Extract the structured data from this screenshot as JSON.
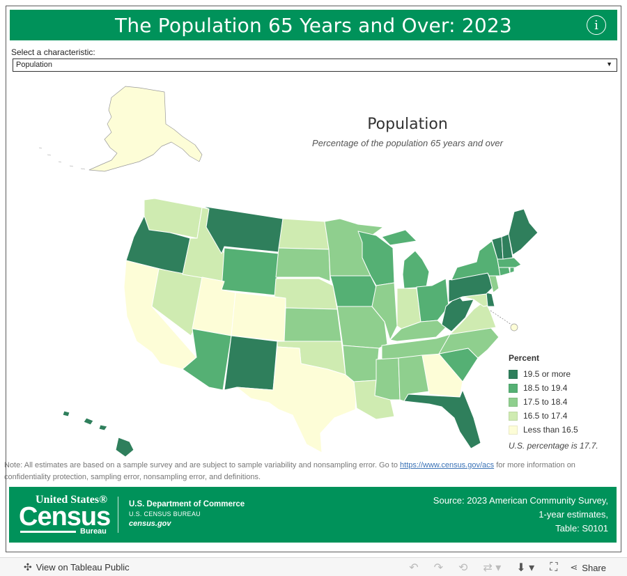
{
  "title": "The Population 65 Years and Over: 2023",
  "info_icon": "info-icon",
  "selector": {
    "label": "Select a characteristic:",
    "value": "Population"
  },
  "map": {
    "title": "Population",
    "subtitle": "Percentage of the population 65 years and over"
  },
  "legend": {
    "title": "Percent",
    "items": [
      {
        "label": "19.5 or more",
        "color": "#2f7f5c"
      },
      {
        "label": "18.5 to 19.4",
        "color": "#55b074"
      },
      {
        "label": "17.5 to 18.4",
        "color": "#8fcf8e"
      },
      {
        "label": "16.5 to 17.4",
        "color": "#cfebb1"
      },
      {
        "label": "Less than 16.5",
        "color": "#fdfdd7"
      }
    ],
    "us_percentage": "U.S. percentage is 17.7."
  },
  "state_classes": {
    "WA": 3,
    "OR": 0,
    "CA": 4,
    "NV": 3,
    "ID": 3,
    "MT": 0,
    "WY": 1,
    "UT": 4,
    "AZ": 1,
    "CO": 4,
    "NM": 0,
    "ND": 3,
    "SD": 2,
    "NE": 3,
    "KS": 2,
    "OK": 3,
    "TX": 4,
    "MN": 2,
    "IA": 1,
    "MO": 2,
    "AR": 2,
    "LA": 3,
    "WI": 1,
    "IL": 2,
    "MI": 1,
    "IN": 3,
    "OH": 1,
    "KY": 2,
    "TN": 2,
    "MS": 2,
    "AL": 2,
    "GA": 4,
    "FL": 0,
    "SC": 1,
    "NC": 2,
    "VA": 3,
    "WV": 0,
    "PA": 0,
    "NY": 1,
    "VT": 0,
    "NH": 0,
    "ME": 0,
    "MA": 1,
    "RI": 1,
    "CT": 1,
    "NJ": 2,
    "DE": 0,
    "MD": 3,
    "DC": 4,
    "AK": 4,
    "HI": 0
  },
  "note": {
    "before": "Note: All estimates are based on a sample survey and are subject to sample variability and nonsampling error. Go to ",
    "link": "https://www.census.gov/acs",
    "after": " for more information on confidentiality protection, sampling error, nonsampling error, and definitions."
  },
  "footer": {
    "logo_united_states": "United States®",
    "logo_census": "Census",
    "logo_bureau": "Bureau",
    "dept_line1": "U.S. Department of Commerce",
    "dept_line2": "U.S. CENSUS BUREAU",
    "dept_line3": "census.gov",
    "source_line1": "Source: 2023 American Community Survey,",
    "source_line2": "1-year estimates,",
    "source_line3": "Table: S0101"
  },
  "toolbar": {
    "view_label": "View on Tableau Public",
    "share_label": "Share"
  }
}
